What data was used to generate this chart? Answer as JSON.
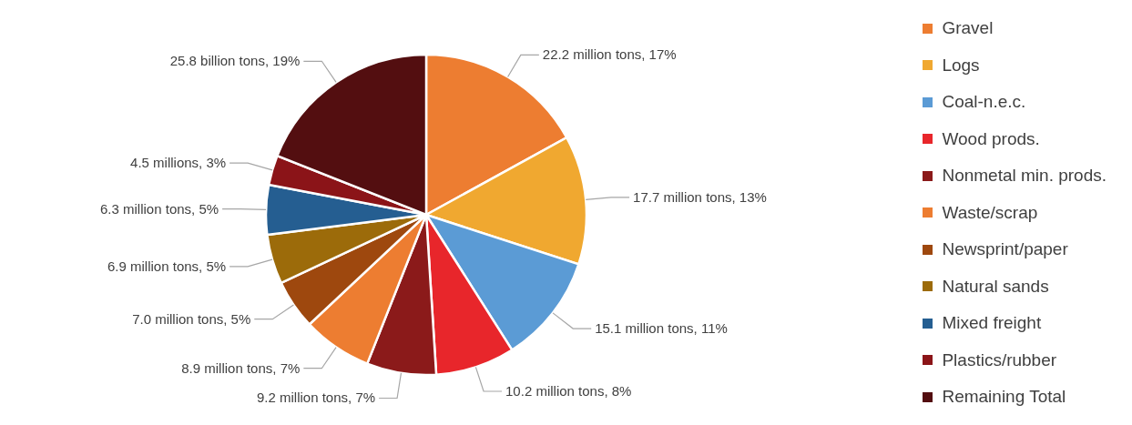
{
  "chart_data": {
    "type": "pie",
    "categories": [
      "Gravel",
      "Logs",
      "Coal-n.e.c.",
      "Wood prods.",
      "Nonmetal min. prods.",
      "Waste/scrap",
      "Newsprint/paper",
      "Natural sands",
      "Mixed freight",
      "Plastics/rubber",
      "Remaining Total"
    ],
    "values": [
      17,
      13,
      11,
      8,
      7,
      7,
      5,
      5,
      5,
      3,
      19
    ],
    "value_labels": [
      "22.2 million tons, 17%",
      "17.7 million tons, 13%",
      "15.1 million tons, 11%",
      "10.2 million tons, 8%",
      "9.2 million tons, 7%",
      "8.9 million tons, 7%",
      "7.0 million tons, 5%",
      "6.9 million tons, 5%",
      "6.3 million tons, 5%",
      "4.5 millions, 3%",
      "25.8 billion tons, 19%"
    ],
    "colors": [
      "#ed7d31",
      "#f0a830",
      "#5b9bd5",
      "#e8262b",
      "#8b1a1a",
      "#ed7d31",
      "#9e480e",
      "#9c6b0a",
      "#255e91",
      "#8b1418",
      "#530e10"
    ],
    "legend": "right"
  }
}
